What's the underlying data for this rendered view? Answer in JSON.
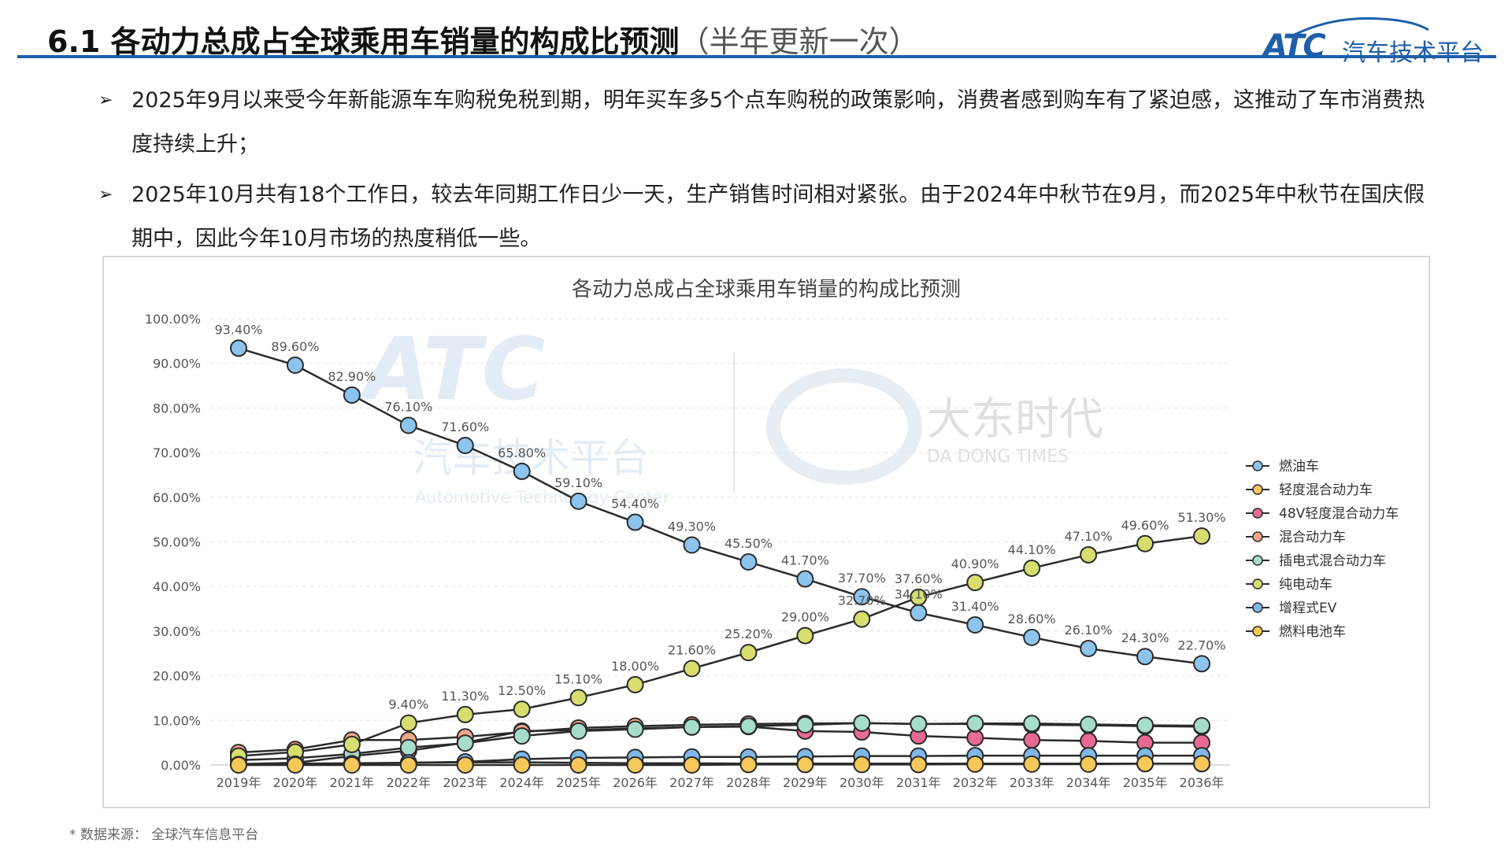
{
  "header": {
    "title": "6.1 各动力总成占全球乘用车销量的构成比预测",
    "subtitle": "（半年更新一次）",
    "logo_mark": "ATC",
    "logo_text": "汽车技术平台"
  },
  "bullets": [
    "2025年9月以来受今年新能源车车购税免税到期，明年买车多5个点车购税的政策影响，消费者感到购车有了紧迫感，这推动了车市消费热度持续上升；",
    "2025年10月共有18个工作日，较去年同期工作日少一天，生产销售时间相对紧张。由于2024年中秋节在9月，而2025年中秋节在国庆假期中，因此今年10月市场的热度稍低一些。"
  ],
  "chart_data": {
    "type": "line",
    "title": "各动力总成占全球乘用车销量的构成比预测",
    "categories": [
      "2019年",
      "2020年",
      "2021年",
      "2022年",
      "2023年",
      "2024年",
      "2025年",
      "2026年",
      "2027年",
      "2028年",
      "2029年",
      "2030年",
      "2031年",
      "2032年",
      "2033年",
      "2034年",
      "2035年",
      "2036年"
    ],
    "ylim": [
      0,
      100
    ],
    "yticks": [
      "0.00%",
      "10.00%",
      "20.00%",
      "30.00%",
      "40.00%",
      "50.00%",
      "60.00%",
      "70.00%",
      "80.00%",
      "90.00%",
      "100.00%"
    ],
    "grid": true,
    "legend_position": "right",
    "series": [
      {
        "name": "燃油车",
        "color": "#8cc4ee",
        "values": [
          93.4,
          89.6,
          82.9,
          76.1,
          71.6,
          65.8,
          59.1,
          54.4,
          49.3,
          45.5,
          41.7,
          37.7,
          34.1,
          31.4,
          28.6,
          26.1,
          24.3,
          22.7
        ]
      },
      {
        "name": "轻度混合动力车",
        "color": "#f5c463",
        "values": [
          0.2,
          0.3,
          0.4,
          0.5,
          0.6,
          0.6,
          0.5,
          0.4,
          0.4,
          0.3,
          0.3,
          0.3,
          0.3,
          0.3,
          0.3,
          0.3,
          0.3,
          0.3
        ]
      },
      {
        "name": "48V轻度混合动力车",
        "color": "#e86a92",
        "values": [
          0.2,
          0.5,
          2.0,
          3.2,
          5.0,
          7.6,
          7.8,
          8.2,
          8.5,
          8.6,
          7.6,
          7.4,
          6.5,
          6.1,
          5.6,
          5.4,
          5.0,
          5.0
        ]
      },
      {
        "name": "混合动力车",
        "color": "#f3a68b",
        "values": [
          2.8,
          3.5,
          5.6,
          5.6,
          6.3,
          7.4,
          8.3,
          8.7,
          9.0,
          9.2,
          9.3,
          9.4,
          9.2,
          9.2,
          9.0,
          8.9,
          8.7,
          8.6
        ]
      },
      {
        "name": "插电式混合动力车",
        "color": "#a6dccc",
        "values": [
          1.1,
          1.5,
          2.5,
          3.9,
          4.9,
          6.5,
          7.6,
          8.0,
          8.5,
          8.7,
          9.0,
          9.4,
          9.2,
          9.3,
          9.3,
          9.1,
          8.9,
          8.8
        ]
      },
      {
        "name": "纯电动车",
        "color": "#d6de6e",
        "values": [
          2.0,
          2.9,
          4.6,
          9.4,
          11.3,
          12.5,
          15.1,
          18.0,
          21.6,
          25.2,
          29.0,
          32.7,
          37.6,
          40.9,
          44.1,
          47.1,
          49.6,
          51.3
        ]
      },
      {
        "name": "增程式EV",
        "color": "#7fb8e8",
        "values": [
          0.1,
          0.2,
          0.3,
          0.5,
          0.7,
          1.3,
          1.6,
          1.7,
          1.8,
          1.8,
          1.9,
          2.0,
          2.0,
          2.1,
          2.1,
          2.1,
          2.1,
          2.1
        ]
      },
      {
        "name": "燃料电池车",
        "color": "#f6c85a",
        "values": [
          0.0,
          0.0,
          0.0,
          0.0,
          0.0,
          0.0,
          0.0,
          0.0,
          0.0,
          0.1,
          0.1,
          0.1,
          0.1,
          0.2,
          0.2,
          0.2,
          0.3,
          0.3
        ]
      }
    ],
    "point_labels": {
      "燃油车": [
        "93.40%",
        "89.60%",
        "82.90%",
        "76.10%",
        "71.60%",
        "65.80%",
        "59.10%",
        "54.40%",
        "49.30%",
        "45.50%",
        "41.70%",
        "37.70%",
        "34.10%",
        "31.40%",
        "28.60%",
        "26.10%",
        "24.30%",
        "22.70%"
      ],
      "纯电动车": [
        "",
        "",
        "",
        "9.40%",
        "11.30%",
        "12.50%",
        "15.10%",
        "18.00%",
        "21.60%",
        "25.20%",
        "29.00%",
        "32.70%",
        "37.60%",
        "40.90%",
        "44.10%",
        "47.10%",
        "49.60%",
        "51.30%"
      ]
    },
    "watermarks": {
      "atc_mark": "ATC",
      "atc_cn": "汽车技术平台",
      "atc_en": "Automotive Technology Center",
      "dd_cn": "大东时代",
      "dd_en": "DA DONG TIMES"
    }
  },
  "footnote": "* 数据来源：  全球汽车信息平台"
}
